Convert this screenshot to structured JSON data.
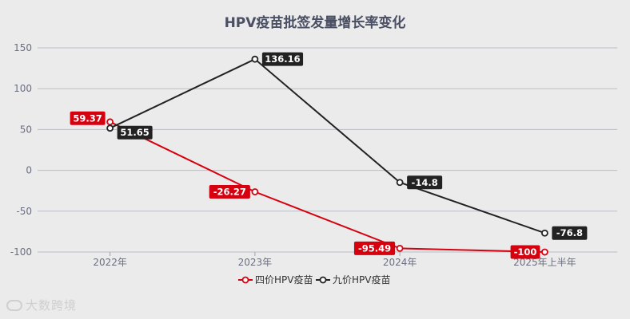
{
  "chart_data": {
    "type": "line",
    "title": "HPV疫苗批签发量增长率变化",
    "categories": [
      "2022年",
      "2023年",
      "2024年",
      "2025年上半年"
    ],
    "y_ticks": [
      150,
      100,
      50,
      0,
      -50,
      -100
    ],
    "ylim": [
      -100,
      150
    ],
    "grid": true,
    "legend_position": "bottom",
    "series": [
      {
        "name": "四价HPV疫苗",
        "color": "#d7000f",
        "values": [
          59.37,
          -26.27,
          -95.49,
          -100
        ],
        "labels": [
          "59.37",
          "-26.27",
          "-95.49",
          "-100"
        ]
      },
      {
        "name": "九价HPV疫苗",
        "color": "#222222",
        "values": [
          51.65,
          136.16,
          -14.8,
          -76.8
        ],
        "labels": [
          "51.65",
          "136.16",
          "-14.8",
          "-76.8"
        ]
      }
    ]
  },
  "watermark": {
    "text": "大数跨境"
  }
}
